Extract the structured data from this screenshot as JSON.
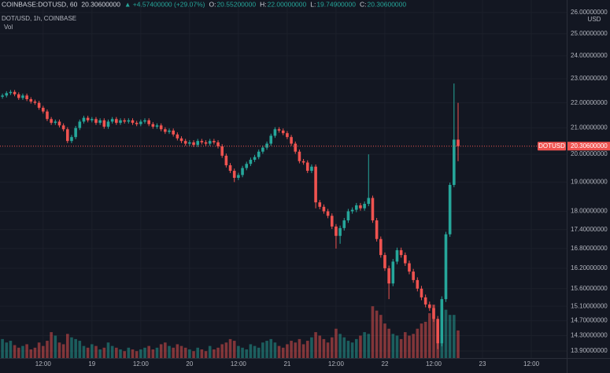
{
  "chart_data": {
    "type": "candlestick",
    "title": "COINBASE:DOTUSD, 60",
    "last": "20.30600000",
    "change": "▲ +4.57400000 (+29.07%)",
    "ohlc_legend": [
      {
        "key": "O:",
        "text": "20.55200000"
      },
      {
        "key": "H:",
        "text": "22.00000000"
      },
      {
        "key": "L:",
        "text": "19.74900000"
      },
      {
        "key": "C:",
        "text": "20.30600000"
      }
    ],
    "subtitle": "DOT/USD, 1h, COINBASE",
    "volume_label": "Vol",
    "y_unit": "USD",
    "price_tag": {
      "symbol": "DOTUSD",
      "price": {
        "value": 20.306,
        "label": "20.30600000"
      }
    },
    "log_scale": true,
    "grid": true,
    "up_color": "#26a69a",
    "down_color": "#ef5350",
    "xlim": [
      -0.6,
      138.7
    ],
    "xticks": [
      {
        "value": 10,
        "label": "12:00"
      },
      {
        "value": 22,
        "label": "19"
      },
      {
        "value": 34,
        "label": "12:00"
      },
      {
        "value": 46,
        "label": "20"
      },
      {
        "value": 58,
        "label": "12:00"
      },
      {
        "value": 70,
        "label": "21"
      },
      {
        "value": 82,
        "label": "12:00"
      },
      {
        "value": 94,
        "label": "22"
      },
      {
        "value": 106,
        "label": "12:00"
      },
      {
        "value": 118,
        "label": "23"
      },
      {
        "value": 130,
        "label": "12:00"
      }
    ],
    "ylim": [
      13.72,
      26.61
    ],
    "yticks": [
      {
        "value": 26,
        "label": "26.00000000"
      },
      {
        "value": 25,
        "label": "25.00000000"
      },
      {
        "value": 24,
        "label": "24.00000000"
      },
      {
        "value": 23,
        "label": "23.00000000"
      },
      {
        "value": 22,
        "label": "22.00000000"
      },
      {
        "value": 21,
        "label": "21.00000000"
      },
      {
        "value": 20,
        "label": "20.00000000"
      },
      {
        "value": 19,
        "label": "19.00000000"
      },
      {
        "value": 18,
        "label": "18.00000000"
      },
      {
        "value": 17.4,
        "label": "17.40000000"
      },
      {
        "value": 16.8,
        "label": "16.80000000"
      },
      {
        "value": 16.2,
        "label": "16.20000000"
      },
      {
        "value": 15.6,
        "label": "15.60000000"
      },
      {
        "value": 15.1,
        "label": "15.10000000"
      },
      {
        "value": 14.7,
        "label": "14.70000000"
      },
      {
        "value": 14.3,
        "label": "14.30000000"
      },
      {
        "value": 13.9,
        "label": "13.90000000"
      }
    ],
    "open": [
      22.25,
      22.3,
      22.4,
      22.45,
      22.35,
      22.2,
      22.3,
      22.15,
      22.05,
      22.0,
      21.8,
      21.65,
      21.35,
      21.2,
      21.25,
      21.1,
      20.95,
      20.5,
      20.65,
      21.0,
      21.25,
      21.4,
      21.3,
      21.35,
      21.2,
      21.3,
      21.05,
      21.25,
      21.35,
      21.2,
      21.3,
      21.25,
      21.3,
      21.2,
      21.15,
      21.25,
      21.3,
      21.15,
      21.05,
      21.1,
      20.95,
      20.85,
      20.9,
      20.75,
      20.6,
      20.5,
      20.4,
      20.45,
      20.35,
      20.5,
      20.45,
      20.4,
      20.5,
      20.45,
      20.3,
      19.95,
      19.6,
      19.4,
      19.15,
      19.25,
      19.5,
      19.65,
      19.8,
      19.9,
      20.1,
      20.25,
      20.4,
      20.7,
      20.95,
      20.9,
      20.8,
      20.65,
      20.4,
      20.1,
      19.75,
      19.7,
      19.4,
      19.55,
      18.3,
      18.15,
      18.0,
      17.85,
      17.5,
      17.2,
      17.45,
      17.7,
      18.0,
      18.05,
      18.2,
      18.1,
      18.25,
      18.45,
      17.7,
      17.1,
      16.6,
      16.2,
      15.75,
      16.4,
      16.75,
      16.6,
      16.35,
      16.1,
      15.85,
      15.6,
      15.35,
      15.15,
      15.05,
      14.75,
      14.1,
      15.3,
      17.25,
      18.9,
      20.552
    ],
    "high": [
      22.38,
      22.48,
      22.53,
      22.53,
      22.43,
      22.38,
      22.38,
      22.23,
      22.13,
      22.08,
      21.88,
      21.73,
      21.43,
      21.33,
      21.33,
      21.18,
      21.03,
      20.73,
      21.08,
      21.33,
      21.48,
      21.48,
      21.43,
      21.43,
      21.38,
      21.38,
      21.33,
      21.43,
      21.43,
      21.38,
      21.38,
      21.38,
      21.38,
      21.28,
      21.33,
      21.38,
      21.38,
      21.23,
      21.18,
      21.18,
      21.03,
      20.98,
      20.98,
      20.83,
      20.68,
      20.58,
      20.53,
      20.53,
      20.58,
      20.58,
      20.53,
      20.58,
      20.58,
      20.53,
      20.38,
      20.03,
      19.68,
      19.48,
      19.33,
      19.58,
      19.73,
      19.88,
      19.98,
      20.18,
      20.33,
      20.48,
      20.78,
      21.03,
      21.03,
      20.98,
      20.88,
      20.73,
      20.48,
      20.18,
      19.83,
      19.78,
      19.63,
      19.63,
      18.38,
      18.23,
      18.08,
      17.93,
      17.58,
      17.53,
      17.78,
      18.08,
      18.13,
      18.28,
      18.28,
      18.33,
      20.0,
      18.53,
      17.78,
      17.18,
      16.68,
      16.28,
      16.48,
      16.83,
      16.83,
      16.68,
      16.43,
      16.18,
      15.93,
      15.68,
      15.43,
      15.23,
      15.13,
      14.83,
      15.38,
      17.33,
      18.98,
      22.8,
      22.0
    ],
    "low": [
      22.17,
      22.22,
      22.32,
      22.27,
      22.12,
      22.12,
      22.07,
      21.97,
      21.92,
      21.72,
      21.57,
      21.27,
      21.12,
      21.12,
      21.02,
      20.87,
      20.42,
      20.42,
      20.57,
      20.92,
      21.17,
      21.22,
      21.22,
      21.12,
      21.12,
      20.97,
      20.97,
      21.17,
      21.12,
      21.12,
      21.17,
      21.17,
      21.12,
      21.07,
      21.07,
      21.17,
      21.07,
      20.97,
      20.97,
      20.87,
      20.77,
      20.77,
      20.67,
      20.52,
      20.42,
      20.32,
      20.32,
      20.27,
      20.27,
      20.37,
      20.32,
      20.32,
      20.37,
      20.22,
      19.87,
      19.52,
      19.32,
      19.0,
      19.07,
      19.17,
      19.42,
      19.57,
      19.72,
      19.82,
      20.02,
      20.17,
      20.32,
      20.62,
      20.82,
      20.72,
      20.57,
      20.32,
      20.02,
      19.67,
      19.62,
      19.32,
      19.32,
      18.1,
      18.07,
      17.92,
      17.77,
      17.42,
      16.8,
      16.95,
      17.37,
      17.62,
      17.92,
      17.97,
      18.02,
      18.02,
      18.17,
      17.62,
      17.02,
      16.52,
      16.12,
      15.3,
      15.67,
      16.32,
      16.52,
      16.27,
      16.02,
      15.77,
      15.52,
      15.27,
      15.07,
      14.97,
      14.67,
      13.95,
      14.02,
      15.22,
      17.17,
      18.82,
      19.749
    ],
    "close": [
      22.3,
      22.4,
      22.45,
      22.35,
      22.2,
      22.3,
      22.15,
      22.05,
      22.0,
      21.8,
      21.65,
      21.35,
      21.2,
      21.25,
      21.1,
      20.95,
      20.5,
      20.65,
      21.0,
      21.25,
      21.4,
      21.3,
      21.35,
      21.2,
      21.3,
      21.05,
      21.25,
      21.35,
      21.2,
      21.3,
      21.25,
      21.3,
      21.2,
      21.15,
      21.25,
      21.3,
      21.15,
      21.05,
      21.1,
      20.95,
      20.85,
      20.9,
      20.75,
      20.6,
      20.5,
      20.4,
      20.45,
      20.35,
      20.5,
      20.45,
      20.4,
      20.5,
      20.45,
      20.3,
      19.95,
      19.6,
      19.4,
      19.15,
      19.25,
      19.5,
      19.65,
      19.8,
      19.9,
      20.1,
      20.25,
      20.4,
      20.7,
      20.95,
      20.9,
      20.8,
      20.65,
      20.4,
      20.1,
      19.75,
      19.7,
      19.4,
      19.55,
      18.3,
      18.15,
      18.0,
      17.85,
      17.5,
      17.2,
      17.45,
      17.7,
      18.0,
      18.05,
      18.2,
      18.1,
      18.25,
      18.45,
      17.7,
      17.1,
      16.6,
      16.2,
      15.75,
      16.4,
      16.75,
      16.6,
      16.35,
      16.1,
      15.85,
      15.6,
      15.35,
      15.15,
      15.05,
      14.75,
      14.1,
      15.3,
      17.25,
      18.9,
      20.552,
      20.306
    ],
    "volume": [
      22,
      18,
      20,
      15,
      12,
      14,
      16,
      10,
      12,
      18,
      14,
      20,
      30,
      26,
      18,
      16,
      28,
      24,
      22,
      20,
      14,
      12,
      16,
      14,
      10,
      12,
      18,
      14,
      12,
      10,
      8,
      12,
      10,
      8,
      10,
      12,
      14,
      10,
      12,
      16,
      18,
      14,
      12,
      16,
      14,
      12,
      10,
      8,
      12,
      10,
      8,
      14,
      10,
      12,
      16,
      18,
      22,
      20,
      14,
      12,
      10,
      16,
      14,
      12,
      18,
      20,
      22,
      18,
      14,
      12,
      16,
      20,
      18,
      22,
      16,
      20,
      24,
      30,
      26,
      22,
      18,
      24,
      34,
      28,
      24,
      20,
      18,
      22,
      26,
      30,
      28,
      60,
      55,
      50,
      40,
      34,
      28,
      26,
      22,
      30,
      26,
      28,
      34,
      40,
      42,
      52,
      62,
      40,
      58,
      56,
      50,
      50,
      32
    ]
  }
}
